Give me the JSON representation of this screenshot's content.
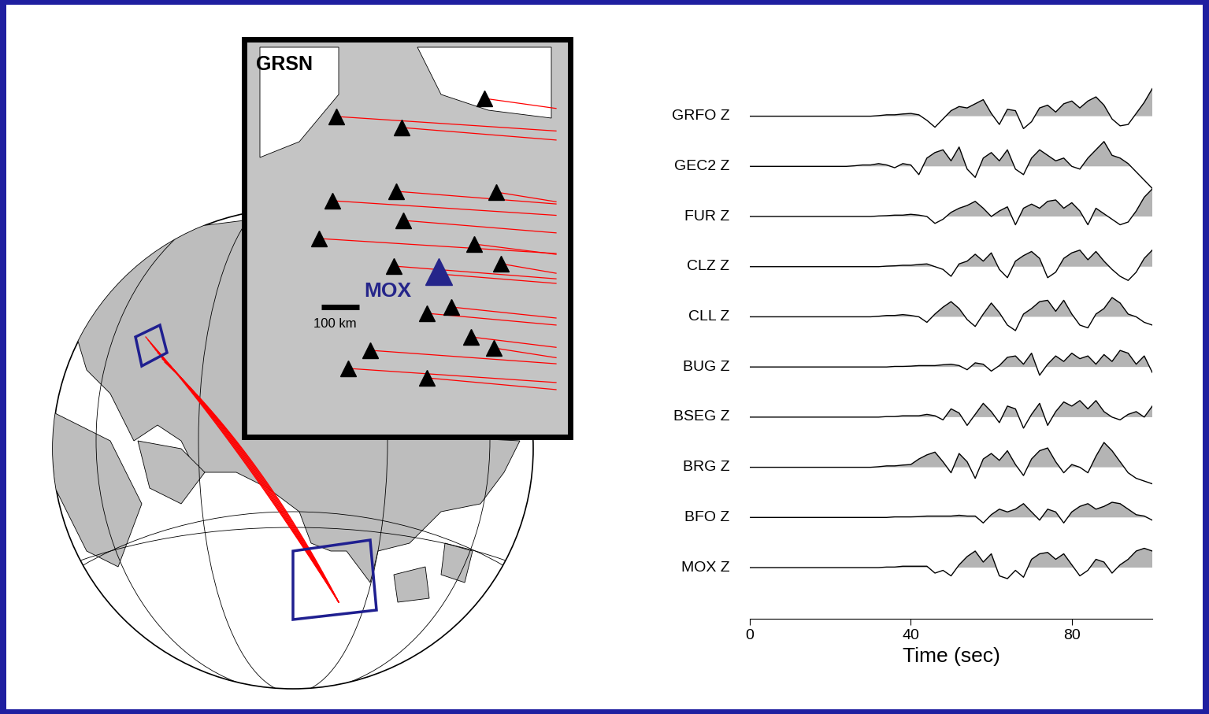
{
  "chart_data": {
    "type": "seismogram",
    "xlabel": "Time (sec)",
    "xlim": [
      0,
      100
    ],
    "xticks": [
      0,
      40,
      80
    ],
    "tick_labels": "x",
    "x": [
      0,
      2,
      4,
      6,
      8,
      10,
      12,
      14,
      16,
      18,
      20,
      22,
      24,
      26,
      28,
      30,
      32,
      34,
      36,
      38,
      40,
      42,
      44,
      46,
      48,
      50,
      52,
      54,
      56,
      58,
      60,
      62,
      64,
      66,
      68,
      70,
      72,
      74,
      76,
      78,
      80,
      82,
      84,
      86,
      88,
      90,
      92,
      94,
      96,
      98,
      100
    ],
    "series": [
      {
        "name": "GRFO Z",
        "color": "#000000",
        "values": [
          0,
          0,
          0,
          0,
          0,
          0,
          0,
          0,
          0,
          0,
          0,
          0,
          0,
          0,
          0,
          0,
          0.02,
          0.05,
          0.05,
          0.08,
          0.1,
          0.05,
          -0.15,
          -0.4,
          -0.1,
          0.2,
          0.35,
          0.3,
          0.45,
          0.6,
          0.1,
          -0.3,
          0.25,
          0.2,
          -0.45,
          -0.2,
          0.3,
          0.4,
          0.15,
          0.45,
          0.55,
          0.3,
          0.55,
          0.7,
          0.4,
          -0.1,
          -0.35,
          -0.3,
          0.1,
          0.5,
          1.0
        ]
      },
      {
        "name": "GEC2 Z",
        "color": "#000000",
        "values": [
          0,
          0,
          0,
          0,
          0,
          0,
          0,
          0,
          0,
          0,
          0,
          0,
          0.0,
          0.02,
          0.05,
          0.05,
          0.1,
          0.05,
          -0.05,
          0.1,
          0.05,
          -0.3,
          0.3,
          0.5,
          0.6,
          0.2,
          0.7,
          -0.1,
          -0.4,
          0.3,
          0.5,
          0.2,
          0.6,
          -0.1,
          -0.3,
          0.3,
          0.6,
          0.4,
          0.2,
          0.3,
          0.0,
          -0.1,
          0.3,
          0.6,
          0.9,
          0.4,
          0.3,
          0.1,
          -0.2,
          -0.5,
          -0.8
        ]
      },
      {
        "name": "FUR Z",
        "color": "#000000",
        "values": [
          0,
          0,
          0,
          0,
          0,
          0,
          0,
          0,
          0,
          0,
          0,
          0,
          0,
          0,
          0,
          0,
          0.02,
          0.03,
          0.05,
          0.05,
          0.08,
          0.05,
          0.0,
          -0.25,
          -0.1,
          0.15,
          0.3,
          0.4,
          0.55,
          0.3,
          0.0,
          0.2,
          0.35,
          -0.3,
          0.3,
          0.45,
          0.3,
          0.55,
          0.6,
          0.3,
          0.5,
          0.2,
          -0.3,
          0.3,
          0.1,
          -0.1,
          -0.3,
          -0.2,
          0.2,
          0.7,
          1.0
        ]
      },
      {
        "name": "CLZ Z",
        "color": "#000000",
        "values": [
          0,
          0,
          0,
          0,
          0,
          0,
          0,
          0,
          0,
          0,
          0,
          0,
          0,
          0,
          0,
          0,
          0.0,
          0.02,
          0.03,
          0.05,
          0.05,
          0.08,
          0.1,
          0.0,
          -0.1,
          -0.35,
          0.1,
          0.2,
          0.45,
          0.2,
          0.5,
          -0.1,
          -0.4,
          0.2,
          0.4,
          0.55,
          0.3,
          -0.4,
          -0.2,
          0.3,
          0.5,
          0.6,
          0.25,
          0.55,
          0.2,
          -0.1,
          -0.35,
          -0.5,
          -0.2,
          0.3,
          0.6
        ]
      },
      {
        "name": "CLL Z",
        "color": "#000000",
        "values": [
          0,
          0,
          0,
          0,
          0,
          0,
          0,
          0,
          0,
          0,
          0,
          0,
          0,
          0,
          0,
          0,
          0.02,
          0.05,
          0.05,
          0.08,
          0.05,
          0.0,
          -0.2,
          0.1,
          0.35,
          0.55,
          0.3,
          -0.1,
          -0.35,
          0.1,
          0.5,
          0.15,
          -0.3,
          -0.5,
          0.1,
          0.3,
          0.55,
          0.6,
          0.2,
          0.6,
          0.1,
          -0.3,
          -0.4,
          0.1,
          0.3,
          0.7,
          0.5,
          0.1,
          0.0,
          -0.2,
          -0.3
        ]
      },
      {
        "name": "BUG Z",
        "color": "#000000",
        "values": [
          0,
          0,
          0,
          0,
          0,
          0,
          0,
          0,
          0,
          0,
          0,
          0,
          0,
          0,
          0,
          0,
          0.0,
          0.0,
          0.02,
          0.02,
          0.03,
          0.05,
          0.05,
          0.05,
          0.08,
          0.1,
          0.05,
          -0.1,
          0.15,
          0.1,
          -0.15,
          0.05,
          0.35,
          0.4,
          0.1,
          0.5,
          -0.3,
          0.1,
          0.4,
          0.2,
          0.5,
          0.3,
          0.4,
          0.1,
          0.45,
          0.2,
          0.6,
          0.5,
          0.1,
          0.4,
          -0.2
        ]
      },
      {
        "name": "BSEG Z",
        "color": "#000000",
        "values": [
          0,
          0,
          0,
          0,
          0,
          0,
          0,
          0,
          0,
          0,
          0,
          0,
          0,
          0,
          0,
          0,
          0.0,
          0.02,
          0.02,
          0.05,
          0.05,
          0.05,
          0.1,
          0.05,
          -0.1,
          0.3,
          0.15,
          -0.3,
          0.1,
          0.5,
          0.2,
          -0.2,
          0.4,
          0.3,
          -0.4,
          0.1,
          0.5,
          -0.3,
          0.2,
          0.55,
          0.4,
          0.6,
          0.3,
          0.6,
          0.2,
          0.0,
          -0.1,
          0.1,
          0.2,
          0.0,
          0.4
        ]
      },
      {
        "name": "BRG Z",
        "color": "#000000",
        "values": [
          0,
          0,
          0,
          0,
          0,
          0,
          0,
          0,
          0,
          0,
          0,
          0,
          0,
          0,
          0,
          0,
          0.02,
          0.05,
          0.05,
          0.08,
          0.1,
          0.3,
          0.45,
          0.55,
          0.2,
          -0.2,
          0.5,
          0.2,
          -0.4,
          0.3,
          0.5,
          0.25,
          0.6,
          0.1,
          -0.3,
          0.3,
          0.6,
          0.7,
          0.2,
          -0.2,
          0.1,
          0.0,
          -0.2,
          0.4,
          0.9,
          0.6,
          0.2,
          -0.2,
          -0.4,
          -0.5,
          -0.6
        ]
      },
      {
        "name": "BFO Z",
        "color": "#000000",
        "values": [
          0,
          0,
          0,
          0,
          0,
          0,
          0,
          0,
          0,
          0,
          0,
          0,
          0,
          0,
          0,
          0,
          0.0,
          0.0,
          0.02,
          0.02,
          0.02,
          0.03,
          0.05,
          0.05,
          0.05,
          0.05,
          0.08,
          0.05,
          0.05,
          -0.2,
          0.1,
          0.3,
          0.2,
          0.3,
          0.5,
          0.2,
          -0.1,
          0.3,
          0.2,
          -0.2,
          0.2,
          0.4,
          0.5,
          0.3,
          0.4,
          0.55,
          0.5,
          0.3,
          0.1,
          0.05,
          -0.1
        ]
      },
      {
        "name": "MOX Z",
        "color": "#000000",
        "values": [
          0,
          0,
          0,
          0,
          0,
          0,
          0,
          0,
          0,
          0,
          0,
          0,
          0,
          0,
          0,
          0,
          0.0,
          0.02,
          0.02,
          0.05,
          0.05,
          0.05,
          0.05,
          -0.2,
          -0.1,
          -0.3,
          0.1,
          0.4,
          0.6,
          0.2,
          0.5,
          -0.3,
          -0.4,
          -0.1,
          -0.35,
          0.3,
          0.5,
          0.55,
          0.3,
          0.5,
          0.1,
          -0.3,
          -0.1,
          0.3,
          0.2,
          -0.2,
          0.1,
          0.3,
          0.6,
          0.7,
          0.6
        ]
      }
    ],
    "map": {
      "inset_title": "GRSN",
      "station_label": "MOX",
      "scale_label": "100 km"
    }
  }
}
